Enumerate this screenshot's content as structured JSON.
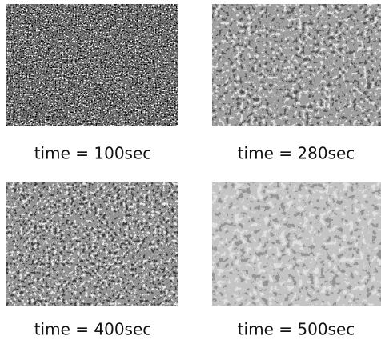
{
  "panels": [
    {
      "caption": "time = 100sec"
    },
    {
      "caption": "time = 280sec"
    },
    {
      "caption": "time = 400sec"
    },
    {
      "caption": "time = 500sec"
    }
  ]
}
